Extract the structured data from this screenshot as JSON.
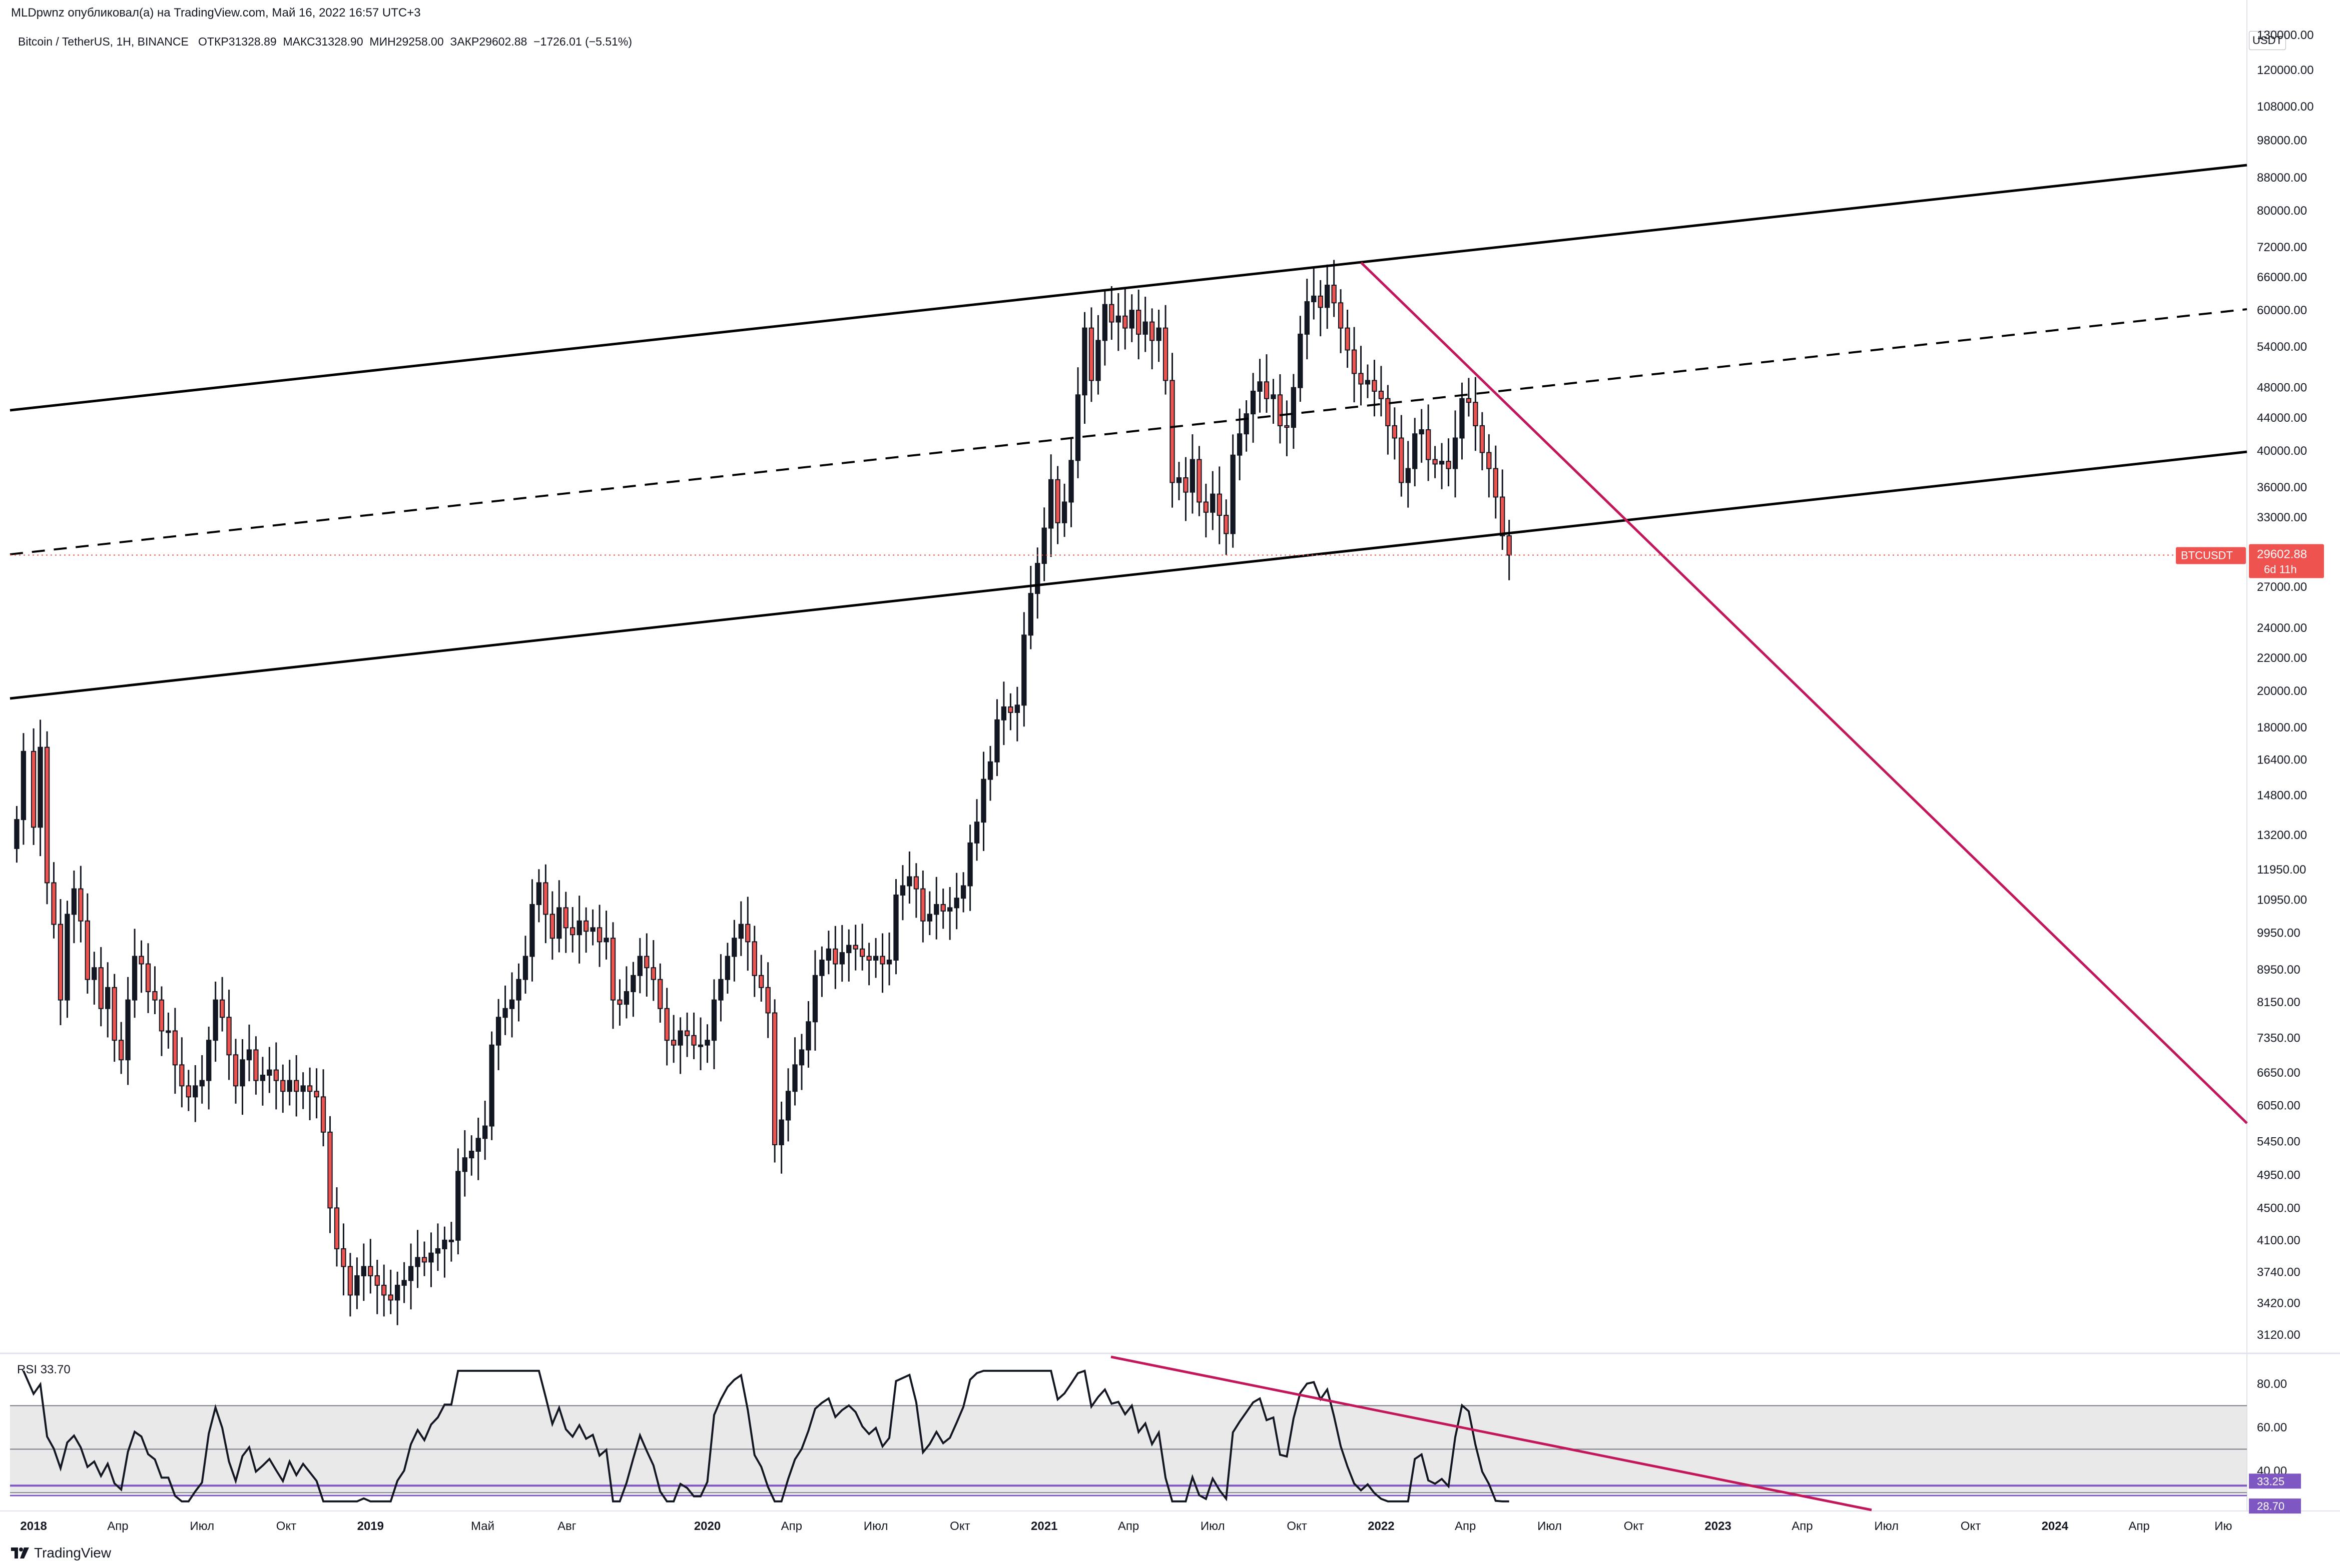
{
  "header": {
    "published_by": "MLDpwnz опубликовал(а) на TradingView.com, Май 16, 2022 16:57 UTC+3"
  },
  "legend": {
    "symbol": "Bitcoin / TetherUS, 1H, BINANCE",
    "open": "ОТКР31328.89",
    "high": "МАКС31328.90",
    "low": "МИН29258.00",
    "close": "ЗАКР29602.88",
    "change": "−1726.01 (−5.51%)"
  },
  "currency_button": "USDT",
  "brand": "TradingView",
  "colors": {
    "bull": "#131722",
    "bear": "#ef5350",
    "channel": "#000000",
    "trendline": "#c2185b",
    "rsi_band": "#e0e0e0",
    "rsi_line": "#131722",
    "level_line": "#7e57c2",
    "price_tag": "#ef5350"
  },
  "chart_data": {
    "type": "candlestick",
    "scale": "log",
    "price_axis_labels": [
      "120000.00",
      "108000.00",
      "98000.00",
      "88000.00",
      "80000.00",
      "72000.00",
      "66000.00",
      "60000.00",
      "54000.00",
      "48000.00",
      "44000.00",
      "40000.00",
      "36000.00",
      "33000.00",
      "27000.00",
      "24000.00",
      "22000.00",
      "20000.00",
      "18000.00",
      "16400.00",
      "14800.00",
      "13200.00",
      "11950.00",
      "10950.00",
      "9950.00",
      "8950.00",
      "8150.00",
      "7350.00",
      "6650.00",
      "6050.00",
      "5450.00",
      "4950.00",
      "4500.00",
      "4100.00",
      "3740.00",
      "3420.00",
      "3120.00"
    ],
    "price_axis_partial_top": "130000.00",
    "last_price": {
      "symbol": "BTCUSDT",
      "value": "29602.88",
      "countdown": "6d 11h"
    },
    "x_axis_labels": [
      {
        "label": "2018",
        "bold": true,
        "t": 2018.0
      },
      {
        "label": "Апр",
        "bold": false,
        "t": 2018.25
      },
      {
        "label": "Июл",
        "bold": false,
        "t": 2018.5
      },
      {
        "label": "Окт",
        "bold": false,
        "t": 2018.75
      },
      {
        "label": "2019",
        "bold": true,
        "t": 2019.0
      },
      {
        "label": "Май",
        "bold": false,
        "t": 2019.333
      },
      {
        "label": "Авг",
        "bold": false,
        "t": 2019.583
      },
      {
        "label": "2020",
        "bold": true,
        "t": 2020.0
      },
      {
        "label": "Апр",
        "bold": false,
        "t": 2020.25
      },
      {
        "label": "Июл",
        "bold": false,
        "t": 2020.5
      },
      {
        "label": "Окт",
        "bold": false,
        "t": 2020.75
      },
      {
        "label": "2021",
        "bold": true,
        "t": 2021.0
      },
      {
        "label": "Апр",
        "bold": false,
        "t": 2021.25
      },
      {
        "label": "Июл",
        "bold": false,
        "t": 2021.5
      },
      {
        "label": "Окт",
        "bold": false,
        "t": 2021.75
      },
      {
        "label": "2022",
        "bold": true,
        "t": 2022.0
      },
      {
        "label": "Апр",
        "bold": false,
        "t": 2022.25
      },
      {
        "label": "Июл",
        "bold": false,
        "t": 2022.5
      },
      {
        "label": "Окт",
        "bold": false,
        "t": 2022.75
      },
      {
        "label": "2023",
        "bold": true,
        "t": 2023.0
      },
      {
        "label": "Апр",
        "bold": false,
        "t": 2023.25
      },
      {
        "label": "Июл",
        "bold": false,
        "t": 2023.5
      },
      {
        "label": "Окт",
        "bold": false,
        "t": 2023.75
      },
      {
        "label": "2024",
        "bold": true,
        "t": 2024.0
      },
      {
        "label": "Апр",
        "bold": false,
        "t": 2024.25
      },
      {
        "label": "Ию",
        "bold": false,
        "t": 2024.5
      }
    ],
    "price_series": [
      [
        2017.95,
        13800
      ],
      [
        2017.97,
        16800
      ],
      [
        2018.0,
        13500
      ],
      [
        2018.02,
        17000
      ],
      [
        2018.04,
        11500
      ],
      [
        2018.06,
        10200
      ],
      [
        2018.08,
        8200
      ],
      [
        2018.1,
        10500
      ],
      [
        2018.12,
        11300
      ],
      [
        2018.14,
        10300
      ],
      [
        2018.16,
        8700
      ],
      [
        2018.18,
        9000
      ],
      [
        2018.2,
        8000
      ],
      [
        2018.22,
        8500
      ],
      [
        2018.24,
        7300
      ],
      [
        2018.26,
        6900
      ],
      [
        2018.28,
        8200
      ],
      [
        2018.3,
        9300
      ],
      [
        2018.32,
        9100
      ],
      [
        2018.34,
        8400
      ],
      [
        2018.36,
        8200
      ],
      [
        2018.38,
        7500
      ],
      [
        2018.4,
        7500
      ],
      [
        2018.42,
        6800
      ],
      [
        2018.44,
        6400
      ],
      [
        2018.46,
        6200
      ],
      [
        2018.48,
        6400
      ],
      [
        2018.5,
        6500
      ],
      [
        2018.52,
        7300
      ],
      [
        2018.54,
        8200
      ],
      [
        2018.56,
        7800
      ],
      [
        2018.58,
        7000
      ],
      [
        2018.6,
        6400
      ],
      [
        2018.62,
        6900
      ],
      [
        2018.64,
        7100
      ],
      [
        2018.66,
        6500
      ],
      [
        2018.68,
        6600
      ],
      [
        2018.7,
        6700
      ],
      [
        2018.72,
        6500
      ],
      [
        2018.74,
        6300
      ],
      [
        2018.76,
        6500
      ],
      [
        2018.78,
        6300
      ],
      [
        2018.8,
        6400
      ],
      [
        2018.82,
        6300
      ],
      [
        2018.84,
        6200
      ],
      [
        2018.86,
        5600
      ],
      [
        2018.88,
        4500
      ],
      [
        2018.9,
        4000
      ],
      [
        2018.92,
        3800
      ],
      [
        2018.94,
        3500
      ],
      [
        2018.96,
        3700
      ],
      [
        2018.98,
        3800
      ],
      [
        2019.0,
        3700
      ],
      [
        2019.02,
        3600
      ],
      [
        2019.04,
        3500
      ],
      [
        2019.06,
        3450
      ],
      [
        2019.08,
        3600
      ],
      [
        2019.1,
        3650
      ],
      [
        2019.12,
        3800
      ],
      [
        2019.14,
        3900
      ],
      [
        2019.16,
        3850
      ],
      [
        2019.18,
        3950
      ],
      [
        2019.2,
        4000
      ],
      [
        2019.22,
        4100
      ],
      [
        2019.24,
        4100
      ],
      [
        2019.26,
        5000
      ],
      [
        2019.28,
        5200
      ],
      [
        2019.3,
        5300
      ],
      [
        2019.32,
        5500
      ],
      [
        2019.34,
        5700
      ],
      [
        2019.36,
        7200
      ],
      [
        2019.38,
        7800
      ],
      [
        2019.4,
        8000
      ],
      [
        2019.42,
        8200
      ],
      [
        2019.44,
        8700
      ],
      [
        2019.46,
        9300
      ],
      [
        2019.48,
        10800
      ],
      [
        2019.5,
        11500
      ],
      [
        2019.52,
        10500
      ],
      [
        2019.54,
        9800
      ],
      [
        2019.56,
        10700
      ],
      [
        2019.58,
        10100
      ],
      [
        2019.6,
        9900
      ],
      [
        2019.62,
        10300
      ],
      [
        2019.64,
        10000
      ],
      [
        2019.66,
        10100
      ],
      [
        2019.68,
        9700
      ],
      [
        2019.7,
        9800
      ],
      [
        2019.72,
        8200
      ],
      [
        2019.74,
        8100
      ],
      [
        2019.76,
        8400
      ],
      [
        2019.78,
        8800
      ],
      [
        2019.8,
        9300
      ],
      [
        2019.82,
        9000
      ],
      [
        2019.84,
        8700
      ],
      [
        2019.86,
        8000
      ],
      [
        2019.88,
        7300
      ],
      [
        2019.9,
        7200
      ],
      [
        2019.92,
        7500
      ],
      [
        2019.94,
        7400
      ],
      [
        2019.96,
        7200
      ],
      [
        2019.98,
        7200
      ],
      [
        2020.0,
        7300
      ],
      [
        2020.02,
        8200
      ],
      [
        2020.04,
        8700
      ],
      [
        2020.06,
        9300
      ],
      [
        2020.08,
        9800
      ],
      [
        2020.1,
        10200
      ],
      [
        2020.12,
        9700
      ],
      [
        2020.14,
        8800
      ],
      [
        2020.16,
        8500
      ],
      [
        2020.18,
        7900
      ],
      [
        2020.2,
        5400
      ],
      [
        2020.22,
        5800
      ],
      [
        2020.24,
        6300
      ],
      [
        2020.26,
        6800
      ],
      [
        2020.28,
        7100
      ],
      [
        2020.3,
        7700
      ],
      [
        2020.32,
        8800
      ],
      [
        2020.34,
        9200
      ],
      [
        2020.36,
        9500
      ],
      [
        2020.38,
        9100
      ],
      [
        2020.4,
        9400
      ],
      [
        2020.42,
        9600
      ],
      [
        2020.44,
        9500
      ],
      [
        2020.46,
        9300
      ],
      [
        2020.48,
        9200
      ],
      [
        2020.5,
        9300
      ],
      [
        2020.52,
        9100
      ],
      [
        2020.54,
        9200
      ],
      [
        2020.56,
        11100
      ],
      [
        2020.58,
        11400
      ],
      [
        2020.6,
        11700
      ],
      [
        2020.62,
        11300
      ],
      [
        2020.64,
        10300
      ],
      [
        2020.66,
        10500
      ],
      [
        2020.68,
        10800
      ],
      [
        2020.7,
        10600
      ],
      [
        2020.72,
        10700
      ],
      [
        2020.74,
        11000
      ],
      [
        2020.76,
        11400
      ],
      [
        2020.78,
        12900
      ],
      [
        2020.8,
        13700
      ],
      [
        2020.82,
        15500
      ],
      [
        2020.84,
        16300
      ],
      [
        2020.86,
        18400
      ],
      [
        2020.88,
        19100
      ],
      [
        2020.9,
        18800
      ],
      [
        2020.92,
        19200
      ],
      [
        2020.94,
        23500
      ],
      [
        2020.96,
        26500
      ],
      [
        2020.98,
        28900
      ],
      [
        2021.0,
        32000
      ],
      [
        2021.02,
        36800
      ],
      [
        2021.04,
        32500
      ],
      [
        2021.06,
        34500
      ],
      [
        2021.08,
        38900
      ],
      [
        2021.1,
        47000
      ],
      [
        2021.12,
        57000
      ],
      [
        2021.14,
        49000
      ],
      [
        2021.16,
        55000
      ],
      [
        2021.18,
        61000
      ],
      [
        2021.2,
        58000
      ],
      [
        2021.22,
        59000
      ],
      [
        2021.24,
        57000
      ],
      [
        2021.26,
        60000
      ],
      [
        2021.28,
        56000
      ],
      [
        2021.3,
        58000
      ],
      [
        2021.32,
        55000
      ],
      [
        2021.34,
        57000
      ],
      [
        2021.36,
        49000
      ],
      [
        2021.38,
        36500
      ],
      [
        2021.4,
        37000
      ],
      [
        2021.42,
        35500
      ],
      [
        2021.44,
        39000
      ],
      [
        2021.46,
        34500
      ],
      [
        2021.48,
        33500
      ],
      [
        2021.5,
        35300
      ],
      [
        2021.52,
        33200
      ],
      [
        2021.54,
        31500
      ],
      [
        2021.56,
        39500
      ],
      [
        2021.58,
        42000
      ],
      [
        2021.6,
        44500
      ],
      [
        2021.62,
        47500
      ],
      [
        2021.64,
        48800
      ],
      [
        2021.66,
        46500
      ],
      [
        2021.68,
        47000
      ],
      [
        2021.7,
        43000
      ],
      [
        2021.72,
        42800
      ],
      [
        2021.74,
        48000
      ],
      [
        2021.76,
        56000
      ],
      [
        2021.78,
        61500
      ],
      [
        2021.8,
        62500
      ],
      [
        2021.82,
        60500
      ],
      [
        2021.84,
        64500
      ],
      [
        2021.86,
        61300
      ],
      [
        2021.88,
        57000
      ],
      [
        2021.9,
        53500
      ],
      [
        2021.92,
        50000
      ],
      [
        2021.94,
        48500
      ],
      [
        2021.96,
        49000
      ],
      [
        2021.98,
        47500
      ],
      [
        2022.0,
        46500
      ],
      [
        2022.02,
        43000
      ],
      [
        2022.04,
        41500
      ],
      [
        2022.06,
        36500
      ],
      [
        2022.08,
        38000
      ],
      [
        2022.1,
        42000
      ],
      [
        2022.12,
        42500
      ],
      [
        2022.14,
        39000
      ],
      [
        2022.16,
        38500
      ],
      [
        2022.18,
        38800
      ],
      [
        2022.2,
        38000
      ],
      [
        2022.22,
        41500
      ],
      [
        2022.24,
        46500
      ],
      [
        2022.26,
        46000
      ],
      [
        2022.28,
        43000
      ],
      [
        2022.3,
        39800
      ],
      [
        2022.32,
        38000
      ],
      [
        2022.34,
        35000
      ],
      [
        2022.36,
        31300
      ],
      [
        2022.38,
        29600
      ]
    ],
    "rsi": {
      "label": "RSI",
      "value": "33.70",
      "axis_labels": [
        "80.00",
        "60.00",
        "40.00"
      ],
      "band": [
        30,
        70
      ],
      "level_tags": [
        "33.25",
        "28.70"
      ]
    }
  }
}
